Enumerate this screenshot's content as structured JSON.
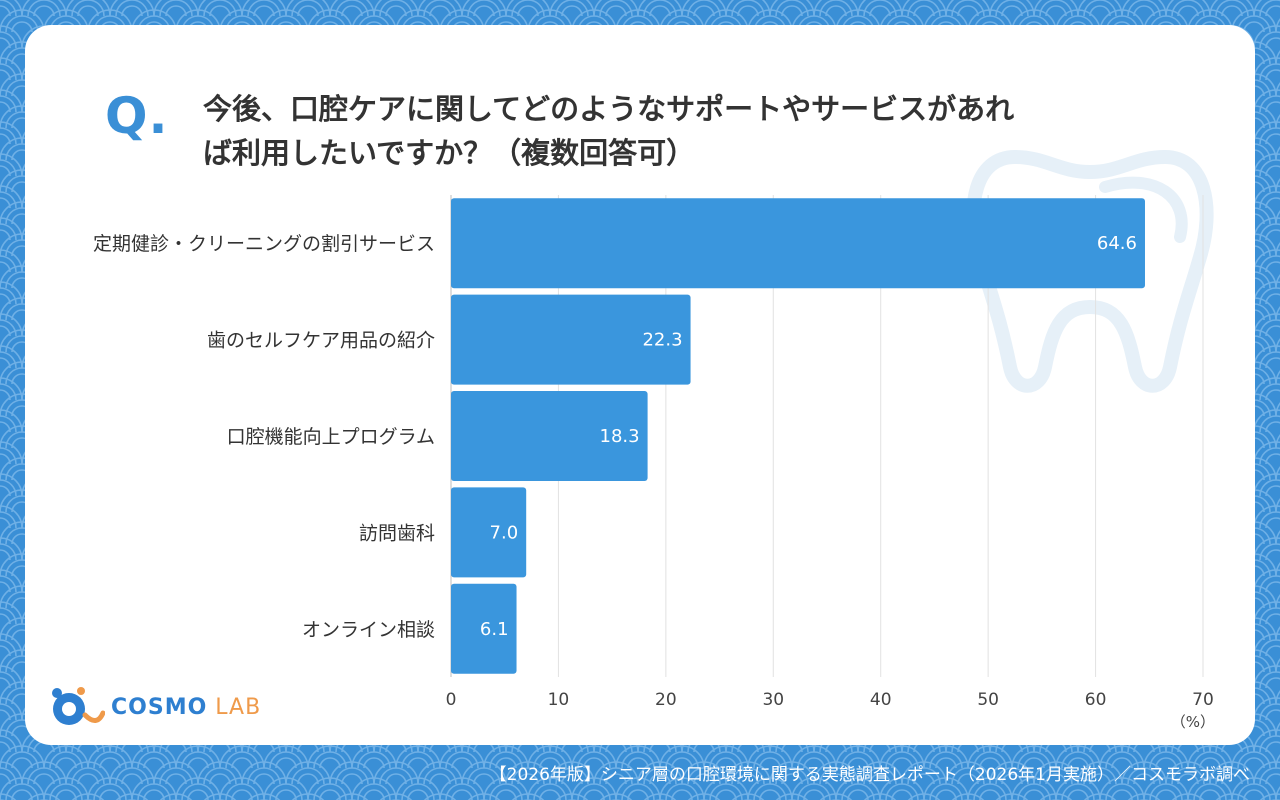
{
  "question": {
    "mark": "Q.",
    "line1": "今後、口腔ケアに関してどのようなサポートやサービスがあれ",
    "line2": "ば利用したいですか？（複数回答可）"
  },
  "logo": {
    "cosmo": "COSMO",
    "lab": "LAB"
  },
  "footer": "【2026年版】シニア層の口腔環境に関する実態調査レポート（2026年1月実施）／コスモラボ調べ",
  "colors": {
    "bar": "#3a96dd",
    "background": "#3a8fd6",
    "accent": "#ef9a4a"
  },
  "chart_data": {
    "type": "bar",
    "orientation": "horizontal",
    "categories": [
      "定期健診・クリーニングの割引サービス",
      "歯のセルフケア用品の紹介",
      "口腔機能向上プログラム",
      "訪問歯科",
      "オンライン相談"
    ],
    "values": [
      64.6,
      22.3,
      18.3,
      7.0,
      6.1
    ],
    "value_labels": [
      "64.6",
      "22.3",
      "18.3",
      "7.0",
      "6.1"
    ],
    "xlim": [
      0,
      70
    ],
    "xticks": [
      0,
      10,
      20,
      30,
      40,
      50,
      60,
      70
    ],
    "xunit": "（%）",
    "grid": true
  }
}
